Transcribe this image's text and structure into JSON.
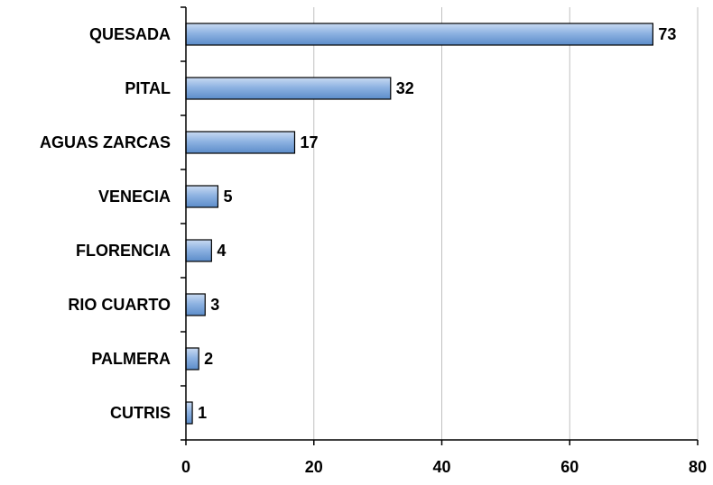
{
  "chart_data": {
    "type": "bar",
    "orientation": "horizontal",
    "categories": [
      "QUESADA",
      "PITAL",
      "AGUAS ZARCAS",
      "VENECIA",
      "FLORENCIA",
      "RIO CUARTO",
      "PALMERA",
      "CUTRIS"
    ],
    "values": [
      73,
      32,
      17,
      5,
      4,
      3,
      2,
      1
    ],
    "title": "",
    "xlabel": "",
    "ylabel": "",
    "xlim": [
      0,
      80
    ],
    "xticks": [
      0,
      20,
      40,
      60,
      80
    ],
    "grid": "vertical",
    "legend": "none",
    "colors": {
      "bar_top": "#c9daf2",
      "bar_bottom": "#5b8cc9",
      "bar_edge": "#000000",
      "grid": "#c0c0c0",
      "axis": "#000000"
    }
  }
}
